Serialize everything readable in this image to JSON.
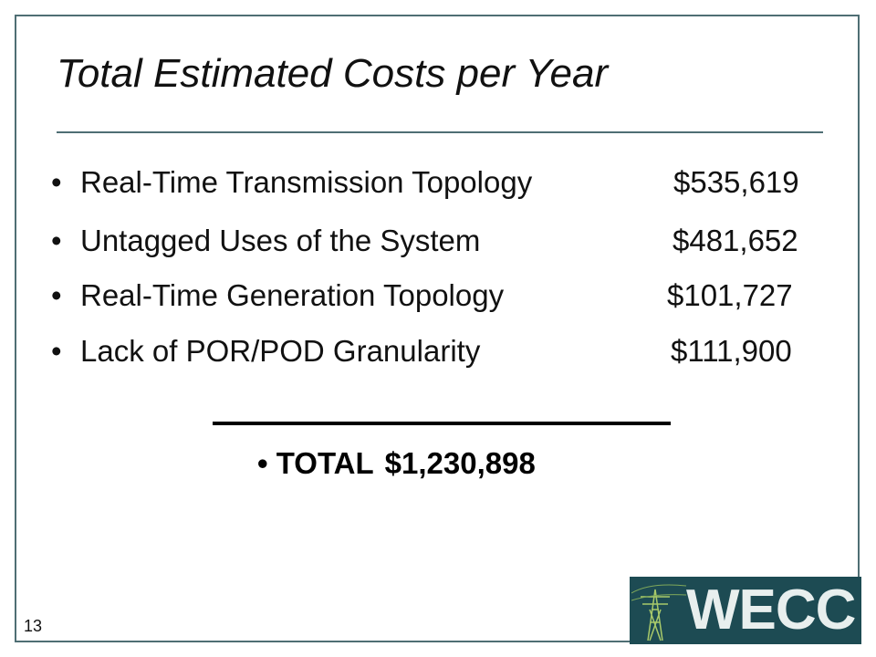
{
  "header": {
    "title": "Total Estimated Costs per Year"
  },
  "items": [
    {
      "label": "Real-Time Transmission Topology",
      "amount": "$535,619"
    },
    {
      "label": "Untagged Uses of the System",
      "amount": "$481,652"
    },
    {
      "label": "Real-Time Generation Topology",
      "amount": "$101,727"
    },
    {
      "label": "Lack of POR/POD Granularity",
      "amount": "$111,900"
    }
  ],
  "total": {
    "label": "TOTAL",
    "amount": "$1,230,898"
  },
  "footer": {
    "page_number": "13",
    "logo": "WECC"
  }
}
